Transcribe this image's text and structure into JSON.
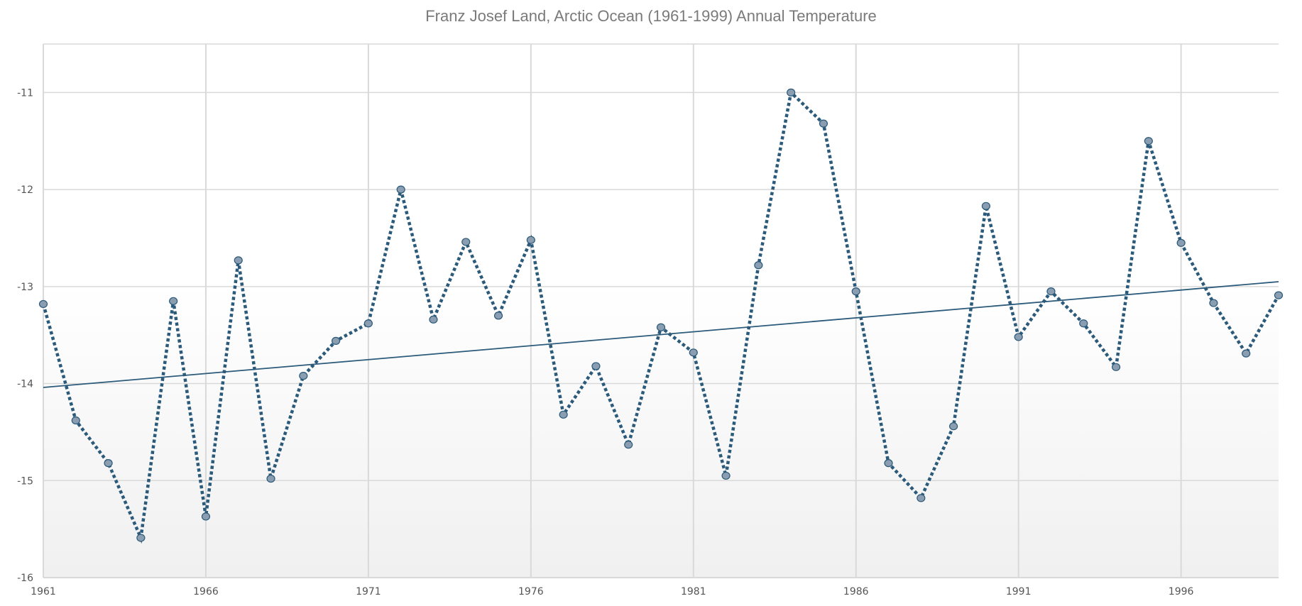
{
  "chart_data": {
    "type": "line",
    "title": "Franz Josef Land, Arctic Ocean (1961-1999) Annual Temperature",
    "xlabel": "",
    "ylabel": "",
    "x": [
      1961,
      1962,
      1963,
      1964,
      1965,
      1966,
      1967,
      1968,
      1969,
      1970,
      1971,
      1972,
      1973,
      1974,
      1975,
      1976,
      1977,
      1978,
      1979,
      1980,
      1981,
      1982,
      1983,
      1984,
      1985,
      1986,
      1987,
      1988,
      1989,
      1990,
      1991,
      1992,
      1993,
      1994,
      1995,
      1996,
      1997,
      1998,
      1999
    ],
    "series": [
      {
        "name": "Annual Temperature",
        "values": [
          -13.18,
          -14.38,
          -14.82,
          -15.59,
          -13.15,
          -15.37,
          -12.73,
          -14.98,
          -13.92,
          -13.56,
          -13.38,
          -12.0,
          -13.34,
          -12.54,
          -13.3,
          -12.52,
          -14.32,
          -13.82,
          -14.63,
          -13.42,
          -13.68,
          -14.95,
          -12.78,
          -11.0,
          -11.32,
          -13.05,
          -14.82,
          -15.18,
          -14.44,
          -12.17,
          -13.52,
          -13.05,
          -13.38,
          -13.83,
          -11.5,
          -12.55,
          -13.17,
          -13.69,
          -13.09
        ],
        "style": "dotted-with-markers"
      }
    ],
    "trendline": {
      "type": "linear",
      "start": [
        1961,
        -14.04
      ],
      "end": [
        1999,
        -12.95
      ]
    },
    "xlim": [
      1961,
      1999
    ],
    "ylim": [
      -16,
      -10.5
    ],
    "xticks": [
      "1961",
      "1966",
      "1971",
      "1976",
      "1981",
      "1986",
      "1991",
      "1996"
    ],
    "yticks": [
      "-11",
      "-12",
      "-13",
      "-14",
      "-15",
      "-16"
    ],
    "grid": true,
    "legend": "none",
    "colors": {
      "line": "#2b5a7a",
      "marker_fill": "#8b9db0",
      "grid": "#d9d9d9",
      "title": "#7a7a7a"
    }
  }
}
